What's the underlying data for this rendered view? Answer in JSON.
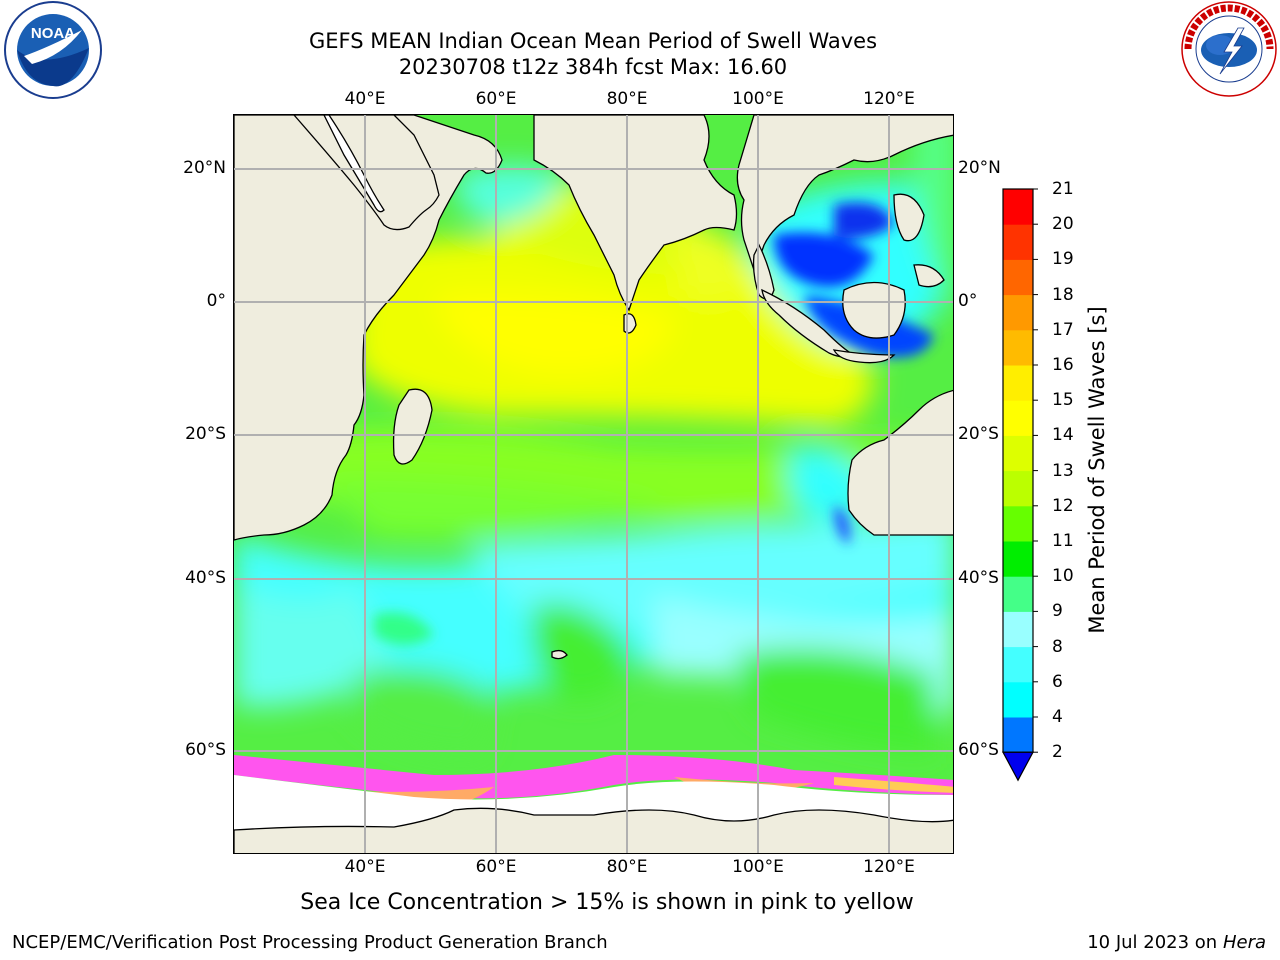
{
  "header": {
    "title_line1": "GEFS MEAN Indian Ocean Mean Period of Swell Waves",
    "title_line2": "20230708 t12z 384h fcst   Max: 16.60"
  },
  "map": {
    "lon_labels": [
      "40°E",
      "60°E",
      "80°E",
      "100°E",
      "120°E"
    ],
    "lat_labels": [
      "20°N",
      "0°",
      "20°S",
      "40°S",
      "60°S"
    ],
    "land_color": "#efedde",
    "ice_note_color_range": [
      "#ff44ff",
      "#ffd24a"
    ]
  },
  "colorbar": {
    "label": "Mean Period of Swell Waves [s]",
    "ticks": [
      "2",
      "4",
      "6",
      "8",
      "9",
      "10",
      "11",
      "12",
      "13",
      "14",
      "15",
      "16",
      "17",
      "18",
      "19",
      "20",
      "21"
    ],
    "colors": [
      "#0000ee",
      "#0077ff",
      "#00ffff",
      "#44ffff",
      "#99ffff",
      "#44ff88",
      "#00ee00",
      "#66ff00",
      "#bbff00",
      "#ddff00",
      "#ffff00",
      "#ffee00",
      "#ffbb00",
      "#ff9900",
      "#ff6600",
      "#ff3300",
      "#ff0000"
    ],
    "extend_color": "#0000ee"
  },
  "notes": {
    "sea_ice": "Sea Ice Concentration > 15% is shown in pink to yellow"
  },
  "footer": {
    "left": "NCEP/EMC/Verification Post Processing Product Generation Branch",
    "date": "10 Jul 2023 on ",
    "machine": "Hera"
  },
  "logos": {
    "noaa_text": "NOAA",
    "nws_text": "NATIONAL WEATHER SERVICE"
  }
}
